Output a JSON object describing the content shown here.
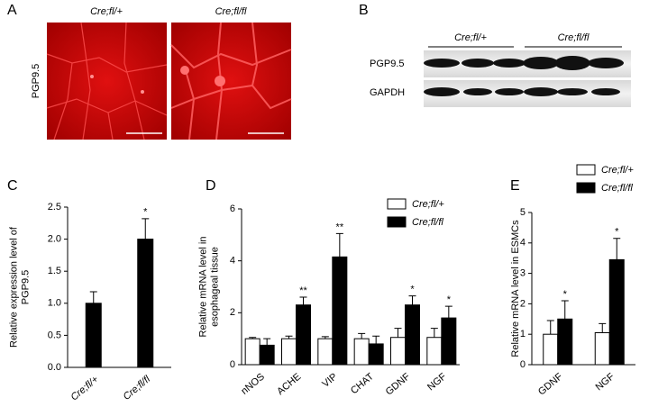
{
  "panels": [
    "A",
    "B",
    "C",
    "D",
    "E"
  ],
  "panel_a": {
    "columns": [
      "Cre;fl/+",
      "Cre;fl/fl"
    ],
    "ylabel": "PGP9.5"
  },
  "panel_b": {
    "groups": [
      "Cre;fl/+",
      "Cre;fl/fl"
    ],
    "rows": [
      "PGP9.5",
      "GAPDH"
    ]
  },
  "chart_data": [
    {
      "type": "bar",
      "ylabel": [
        "Relative expression level of",
        "PGP9.5"
      ],
      "categories": [
        "Cre;fl/+",
        "Cre;fl/fl"
      ],
      "values": [
        1.0,
        2.0
      ],
      "errors": [
        0.18,
        0.32
      ],
      "significance": [
        null,
        "*"
      ],
      "color": "#000000",
      "ylim": [
        0,
        2.5
      ],
      "yticks": [
        {
          "value": 0,
          "label": "0.0"
        },
        {
          "value": 0.5,
          "label": "0.5"
        },
        {
          "value": 1,
          "label": "1.0"
        },
        {
          "value": 1.5,
          "label": "1.5"
        },
        {
          "value": 2,
          "label": "2.0"
        },
        {
          "value": 2.5,
          "label": "2.5"
        }
      ]
    },
    {
      "type": "bar",
      "ylabel": [
        "Relative mRNA level in",
        "esophageal tissue"
      ],
      "categories": [
        "nNOS",
        "ACHE",
        "VIP",
        "CHAT",
        "GDNF",
        "NGF"
      ],
      "series": [
        {
          "name": "Cre;fl/+",
          "color": "#ffffff",
          "values": [
            1.0,
            1.0,
            1.0,
            1.0,
            1.05,
            1.05
          ],
          "errors": [
            0.05,
            0.1,
            0.08,
            0.2,
            0.35,
            0.35
          ],
          "significance": [
            null,
            null,
            null,
            null,
            null,
            null
          ]
        },
        {
          "name": "Cre;fl/fl",
          "color": "#000000",
          "values": [
            0.75,
            2.3,
            4.15,
            0.8,
            2.3,
            1.8
          ],
          "errors": [
            0.25,
            0.3,
            0.9,
            0.3,
            0.35,
            0.45
          ],
          "significance": [
            null,
            "**",
            "**",
            null,
            "*",
            "*"
          ]
        }
      ],
      "ylim": [
        0,
        6
      ],
      "yticks": [
        0,
        2,
        4,
        6
      ]
    },
    {
      "type": "bar",
      "ylabel": [
        "Relative mRNA level in ESMCs"
      ],
      "categories": [
        "GDNF",
        "NGF"
      ],
      "series": [
        {
          "name": "Cre;fl/+",
          "color": "#ffffff",
          "values": [
            1.0,
            1.05
          ],
          "errors": [
            0.45,
            0.3
          ],
          "significance": [
            null,
            null
          ]
        },
        {
          "name": "Cre;fl/fl",
          "color": "#000000",
          "values": [
            1.5,
            3.45
          ],
          "errors": [
            0.6,
            0.7
          ],
          "significance": [
            "*",
            "*"
          ]
        }
      ],
      "ylim": [
        0,
        5
      ],
      "yticks": [
        0,
        1,
        2,
        3,
        4,
        5
      ]
    }
  ]
}
